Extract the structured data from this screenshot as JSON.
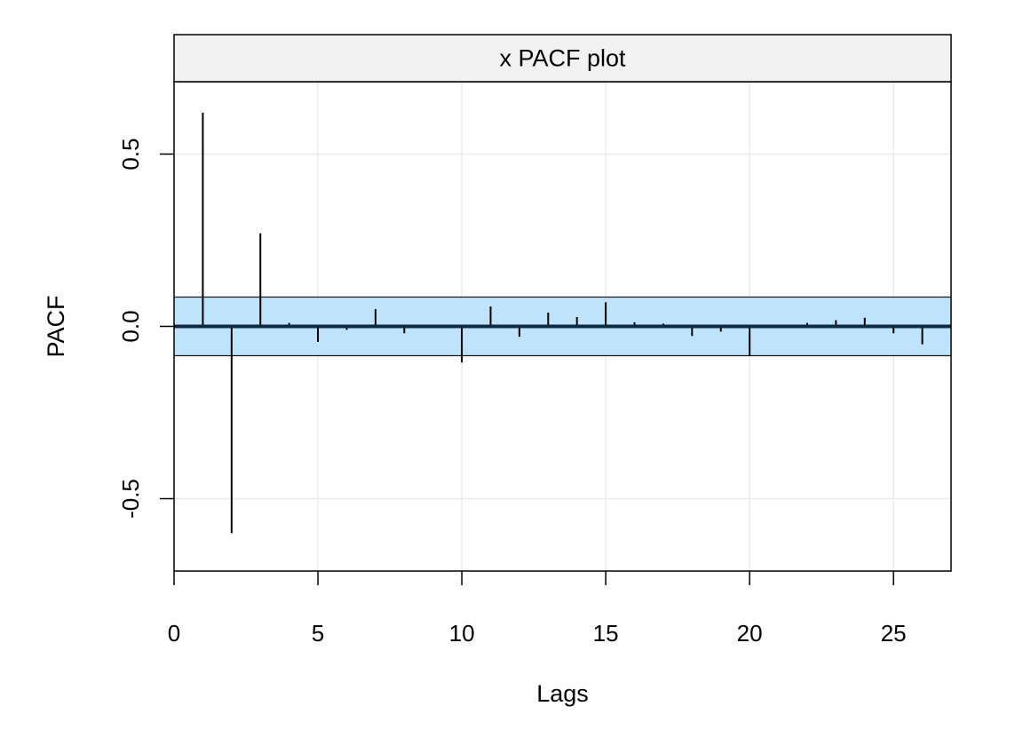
{
  "chart_data": {
    "type": "bar",
    "title": "x PACF plot",
    "xlabel": "Lags",
    "ylabel": "PACF",
    "xlim": [
      0,
      27
    ],
    "ylim": [
      -0.71,
      0.71
    ],
    "xticks": [
      0,
      5,
      10,
      15,
      20,
      25
    ],
    "xtick_labels": [
      "0",
      "5",
      "10",
      "15",
      "20",
      "25"
    ],
    "yticks": [
      -0.5,
      0.0,
      0.5
    ],
    "ytick_labels": [
      "-0.5",
      "0.0",
      "0.5"
    ],
    "grid": true,
    "confidence_band": [
      -0.085,
      0.085
    ],
    "colors": {
      "band_fill": "#bfe3fb",
      "band_edge": "#1a1a1a",
      "zero_line": "#0d2a45",
      "bars": "#000000",
      "strip_bg": "#f2f2f2",
      "grid": "#ebebeb"
    },
    "series": [
      {
        "lags": [
          1,
          2,
          3,
          4,
          5,
          6,
          7,
          8,
          9,
          10,
          11,
          12,
          13,
          14,
          15,
          16,
          17,
          18,
          19,
          20,
          21,
          22,
          23,
          24,
          25,
          26
        ],
        "values": [
          0.62,
          -0.6,
          0.27,
          0.01,
          -0.045,
          -0.01,
          0.05,
          -0.02,
          0.0,
          -0.105,
          0.058,
          -0.03,
          0.04,
          0.027,
          0.07,
          0.012,
          0.008,
          -0.028,
          -0.015,
          -0.085,
          0.0,
          0.01,
          0.018,
          0.025,
          -0.02,
          -0.052
        ]
      }
    ]
  }
}
